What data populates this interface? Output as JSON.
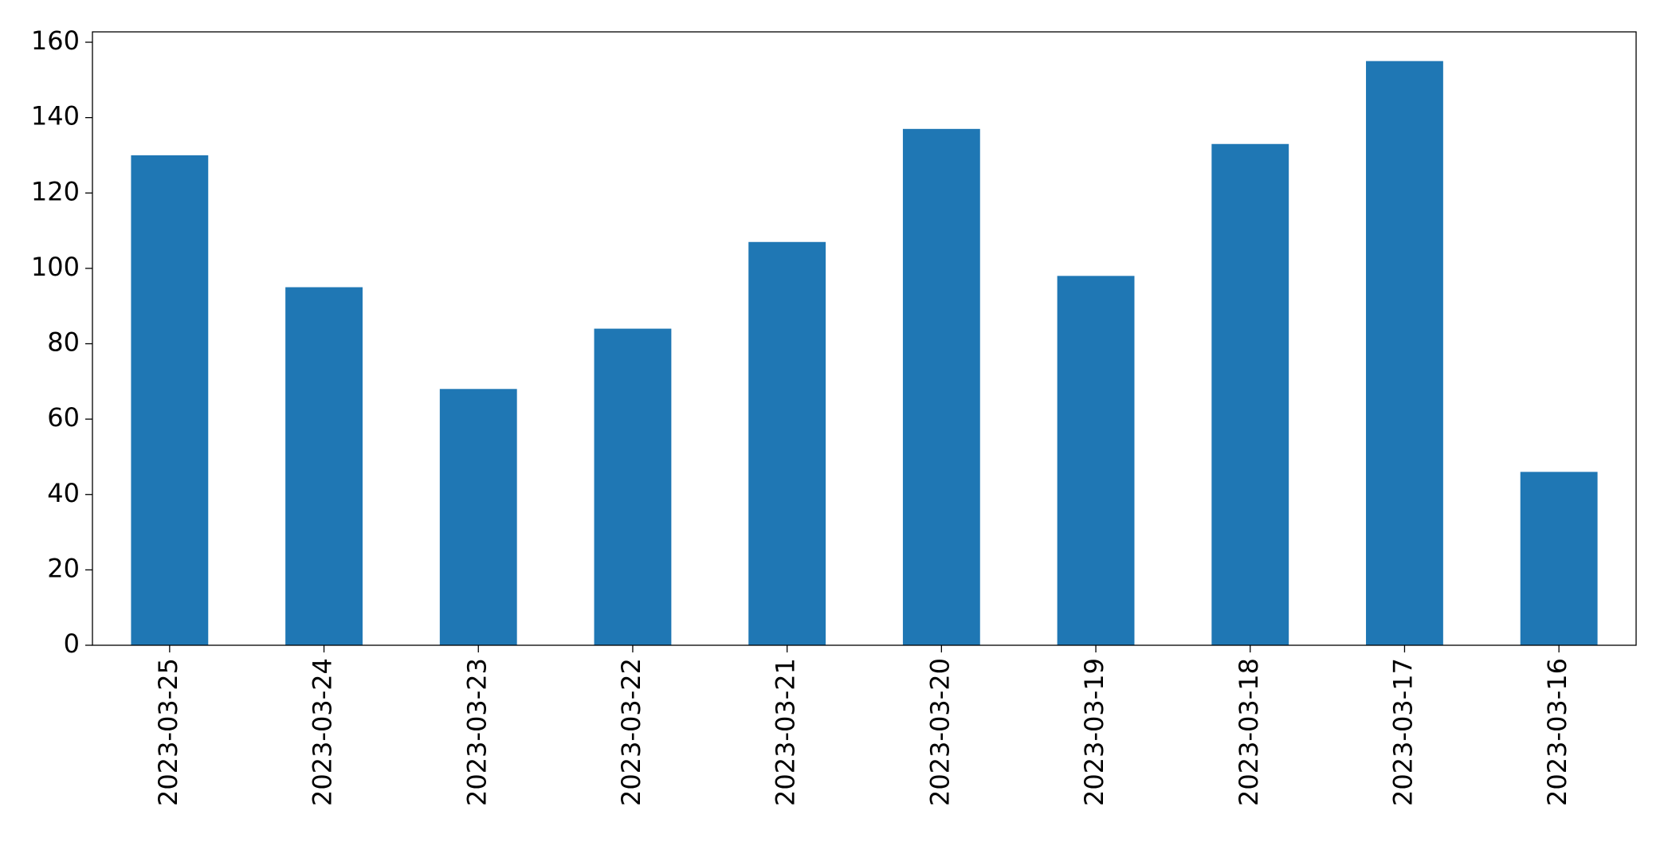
{
  "chart_data": {
    "type": "bar",
    "categories": [
      "2023-03-25",
      "2023-03-24",
      "2023-03-23",
      "2023-03-22",
      "2023-03-21",
      "2023-03-20",
      "2023-03-19",
      "2023-03-18",
      "2023-03-17",
      "2023-03-16"
    ],
    "values": [
      130,
      95,
      68,
      84,
      107,
      137,
      98,
      133,
      155,
      46
    ],
    "color": "#1f77b4",
    "ylim": [
      0,
      162.75
    ],
    "yticks": [
      0,
      20,
      40,
      60,
      80,
      100,
      120,
      140,
      160
    ],
    "grid": false
  }
}
